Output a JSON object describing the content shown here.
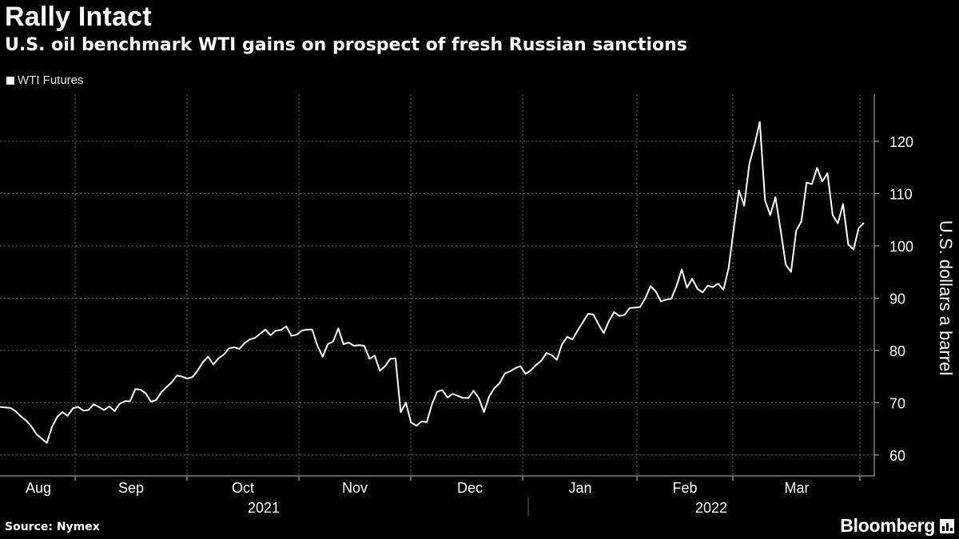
{
  "header": {
    "title": "Rally Intact",
    "subtitle": "U.S. oil benchmark WTI gains on prospect of fresh Russian sanctions"
  },
  "legend": {
    "label": "WTI Futures",
    "color": "#ffffff"
  },
  "footer": {
    "source": "Source: Nymex",
    "brand": "Bloomberg"
  },
  "chart_data": {
    "type": "line",
    "title": "Rally Intact",
    "subtitle": "U.S. oil benchmark WTI gains on prospect of fresh Russian sanctions",
    "xlabel": "",
    "ylabel": "U.S. dollars a barrel",
    "ylim": [
      56,
      129
    ],
    "yticks": [
      60,
      70,
      80,
      90,
      100,
      110,
      120
    ],
    "grid": true,
    "legend_position": "top-left",
    "months": [
      "Aug",
      "Sep",
      "Oct",
      "Nov",
      "Dec",
      "Jan",
      "Feb",
      "Mar"
    ],
    "years": [
      "2021",
      "2022"
    ],
    "x_unit": "days since 2021-07-30",
    "series": [
      {
        "name": "WTI Futures",
        "color": "#ffffff",
        "points": [
          [
            0,
            69.2
          ],
          [
            2,
            69.0
          ],
          [
            3,
            68.4
          ],
          [
            4,
            67.4
          ],
          [
            5,
            66.6
          ],
          [
            6,
            65.5
          ],
          [
            7,
            64.0
          ],
          [
            9,
            62.3
          ],
          [
            10,
            65.4
          ],
          [
            11,
            67.3
          ],
          [
            12,
            68.2
          ],
          [
            13,
            67.5
          ],
          [
            14,
            68.9
          ],
          [
            15,
            69.2
          ],
          [
            16,
            68.5
          ],
          [
            17,
            68.6
          ],
          [
            18,
            69.7
          ],
          [
            19,
            69.2
          ],
          [
            20,
            68.6
          ],
          [
            21,
            69.3
          ],
          [
            22,
            68.4
          ],
          [
            23,
            69.8
          ],
          [
            24,
            70.3
          ],
          [
            25,
            70.3
          ],
          [
            26,
            72.6
          ],
          [
            27,
            72.5
          ],
          [
            28,
            71.8
          ],
          [
            29,
            70.2
          ],
          [
            30,
            70.5
          ],
          [
            31,
            72.0
          ],
          [
            32,
            73.0
          ],
          [
            33,
            73.9
          ],
          [
            34,
            75.2
          ],
          [
            35,
            75.0
          ],
          [
            36,
            74.6
          ],
          [
            37,
            74.9
          ],
          [
            38,
            76.2
          ],
          [
            39,
            77.8
          ],
          [
            40,
            78.8
          ],
          [
            41,
            77.3
          ],
          [
            42,
            78.5
          ],
          [
            43,
            79.2
          ],
          [
            44,
            80.4
          ],
          [
            45,
            80.6
          ],
          [
            46,
            80.3
          ],
          [
            47,
            81.4
          ],
          [
            48,
            82.1
          ],
          [
            49,
            82.4
          ],
          [
            50,
            83.2
          ],
          [
            51,
            84.0
          ],
          [
            52,
            82.9
          ],
          [
            53,
            83.8
          ],
          [
            54,
            83.9
          ],
          [
            55,
            84.6
          ],
          [
            56,
            82.8
          ],
          [
            57,
            83.0
          ],
          [
            58,
            83.8
          ],
          [
            59,
            84.0
          ],
          [
            60,
            84.0
          ],
          [
            61,
            80.9
          ],
          [
            62,
            78.8
          ],
          [
            63,
            81.2
          ],
          [
            64,
            81.7
          ],
          [
            65,
            84.2
          ],
          [
            66,
            81.2
          ],
          [
            67,
            81.5
          ],
          [
            68,
            80.9
          ],
          [
            69,
            81.0
          ],
          [
            70,
            80.9
          ],
          [
            71,
            78.4
          ],
          [
            72,
            79.0
          ],
          [
            73,
            76.1
          ],
          [
            74,
            77.0
          ],
          [
            75,
            78.4
          ],
          [
            76,
            78.5
          ],
          [
            77,
            68.2
          ],
          [
            78,
            70.0
          ],
          [
            79,
            66.2
          ],
          [
            80,
            65.6
          ],
          [
            81,
            66.4
          ],
          [
            82,
            66.3
          ],
          [
            83,
            69.7
          ],
          [
            84,
            72.1
          ],
          [
            85,
            72.4
          ],
          [
            86,
            71.0
          ],
          [
            87,
            71.7
          ],
          [
            88,
            71.3
          ],
          [
            89,
            70.9
          ],
          [
            90,
            70.9
          ],
          [
            91,
            72.3
          ],
          [
            92,
            70.9
          ],
          [
            93,
            68.2
          ],
          [
            94,
            71.2
          ],
          [
            95,
            72.8
          ],
          [
            96,
            73.7
          ],
          [
            97,
            75.6
          ],
          [
            98,
            76.0
          ],
          [
            99,
            76.6
          ],
          [
            100,
            77.0
          ],
          [
            101,
            75.5
          ],
          [
            102,
            76.2
          ],
          [
            103,
            77.2
          ],
          [
            104,
            78.0
          ],
          [
            105,
            79.5
          ],
          [
            106,
            79.1
          ],
          [
            107,
            78.2
          ],
          [
            108,
            81.2
          ],
          [
            109,
            82.6
          ],
          [
            110,
            82.1
          ],
          [
            111,
            83.8
          ],
          [
            112,
            85.4
          ],
          [
            113,
            87.0
          ],
          [
            114,
            86.9
          ],
          [
            115,
            85.0
          ],
          [
            116,
            83.3
          ],
          [
            117,
            85.6
          ],
          [
            118,
            87.3
          ],
          [
            119,
            86.6
          ],
          [
            120,
            86.8
          ],
          [
            121,
            88.1
          ],
          [
            122,
            88.2
          ],
          [
            123,
            88.3
          ],
          [
            124,
            90.0
          ],
          [
            125,
            92.3
          ],
          [
            126,
            91.3
          ],
          [
            127,
            89.4
          ],
          [
            128,
            89.7
          ],
          [
            129,
            89.9
          ],
          [
            130,
            92.3
          ],
          [
            131,
            95.5
          ],
          [
            132,
            92.0
          ],
          [
            133,
            93.7
          ],
          [
            134,
            91.8
          ],
          [
            135,
            91.1
          ],
          [
            136,
            92.4
          ],
          [
            137,
            92.1
          ],
          [
            138,
            92.8
          ],
          [
            139,
            91.6
          ],
          [
            140,
            95.7
          ],
          [
            141,
            103.4
          ],
          [
            142,
            110.6
          ],
          [
            143,
            107.7
          ],
          [
            144,
            115.7
          ],
          [
            145,
            119.4
          ],
          [
            146,
            123.7
          ],
          [
            147,
            108.7
          ],
          [
            148,
            105.9
          ],
          [
            149,
            109.3
          ],
          [
            150,
            103.0
          ],
          [
            151,
            96.4
          ],
          [
            152,
            95.0
          ],
          [
            153,
            102.9
          ],
          [
            154,
            104.7
          ],
          [
            155,
            112.1
          ],
          [
            156,
            111.8
          ],
          [
            157,
            114.9
          ],
          [
            158,
            112.3
          ],
          [
            159,
            113.9
          ],
          [
            160,
            105.9
          ],
          [
            161,
            104.3
          ],
          [
            162,
            108.0
          ],
          [
            163,
            100.3
          ],
          [
            164,
            99.3
          ],
          [
            165,
            103.4
          ],
          [
            166,
            104.4
          ]
        ]
      }
    ],
    "last_value": 104.4
  }
}
